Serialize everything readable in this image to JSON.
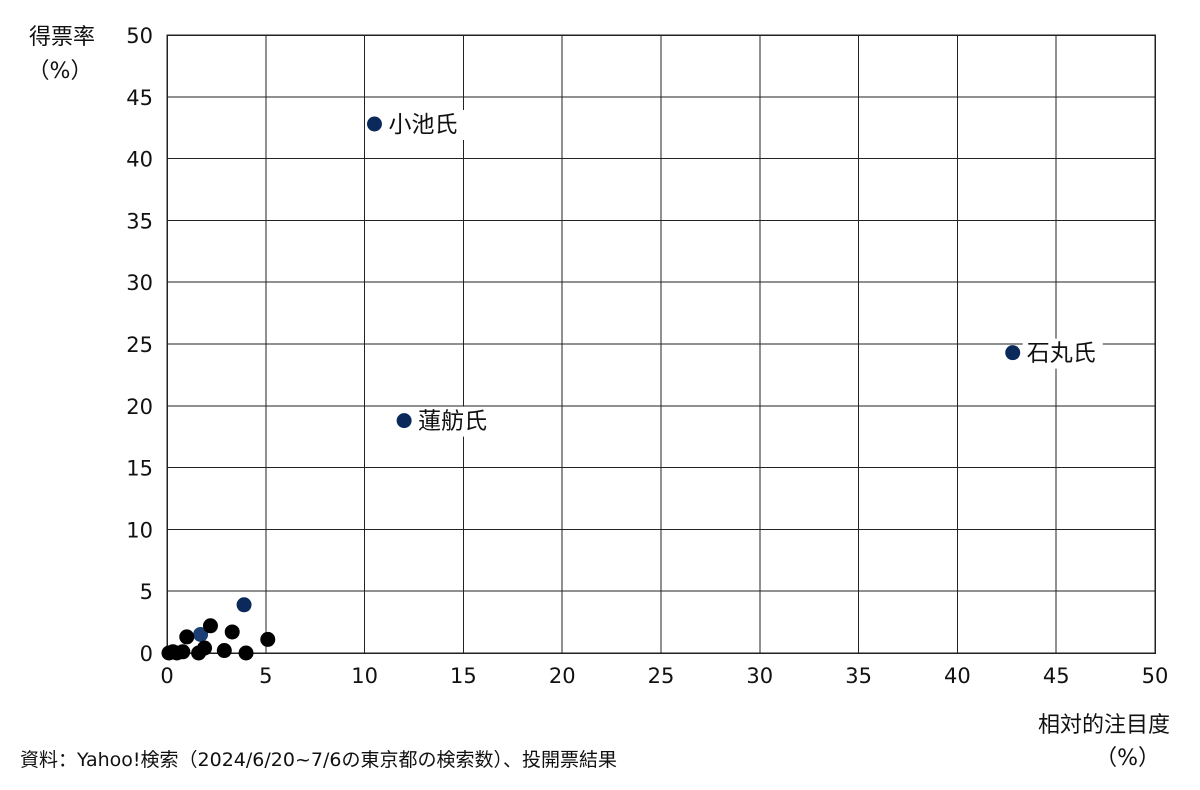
{
  "chart_data": {
    "type": "scatter",
    "title": "",
    "xlabel": "相対的注目度",
    "xunit": "（%）",
    "ylabel": "得票率",
    "yunit": "（%）",
    "xlim": [
      0,
      50
    ],
    "ylim": [
      0,
      50
    ],
    "xticks": [
      0,
      5,
      10,
      15,
      20,
      25,
      30,
      35,
      40,
      45,
      50
    ],
    "yticks": [
      0,
      5,
      10,
      15,
      20,
      25,
      30,
      35,
      40,
      45,
      50
    ],
    "grid": true,
    "points": [
      {
        "x": 10.5,
        "y": 42.8,
        "color": "#0b2a5b",
        "label": "小池氏"
      },
      {
        "x": 42.8,
        "y": 24.3,
        "color": "#0b2a5b",
        "label": "石丸氏"
      },
      {
        "x": 12.0,
        "y": 18.8,
        "color": "#0b2a5b",
        "label": "蓮舫氏"
      },
      {
        "x": 3.9,
        "y": 3.9,
        "color": "#0b2a5b",
        "label": ""
      },
      {
        "x": 1.7,
        "y": 1.5,
        "color": "#1c3f73",
        "label": ""
      },
      {
        "x": 0.1,
        "y": 0.0,
        "color": "#000000",
        "label": ""
      },
      {
        "x": 0.3,
        "y": 0.1,
        "color": "#000000",
        "label": ""
      },
      {
        "x": 0.5,
        "y": 0.0,
        "color": "#000000",
        "label": ""
      },
      {
        "x": 0.8,
        "y": 0.1,
        "color": "#000000",
        "label": ""
      },
      {
        "x": 1.0,
        "y": 1.3,
        "color": "#000000",
        "label": ""
      },
      {
        "x": 1.6,
        "y": 0.0,
        "color": "#000000",
        "label": ""
      },
      {
        "x": 1.9,
        "y": 0.4,
        "color": "#000000",
        "label": ""
      },
      {
        "x": 2.2,
        "y": 2.2,
        "color": "#000000",
        "label": ""
      },
      {
        "x": 2.9,
        "y": 0.2,
        "color": "#000000",
        "label": ""
      },
      {
        "x": 3.3,
        "y": 1.7,
        "color": "#000000",
        "label": ""
      },
      {
        "x": 4.0,
        "y": 0.0,
        "color": "#000000",
        "label": ""
      },
      {
        "x": 5.1,
        "y": 1.1,
        "color": "#000000",
        "label": ""
      }
    ],
    "source": "資料：Yahoo!検索（2024/6/20~7/6の東京都の検索数）、投開票結果"
  }
}
